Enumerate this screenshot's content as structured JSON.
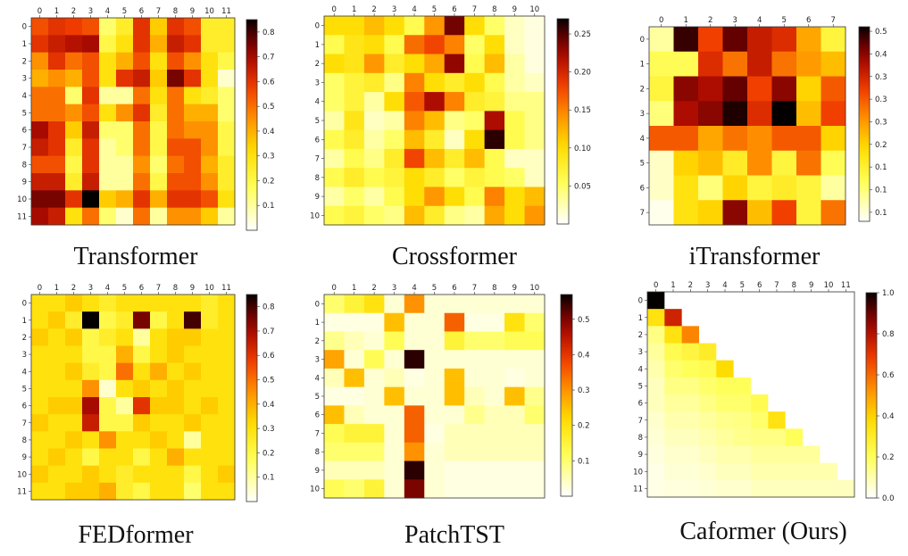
{
  "colormap": "hot_r",
  "chart_data": [
    {
      "type": "heatmap",
      "title": "Transformer",
      "x_ticks": [
        "0",
        "1",
        "2",
        "3",
        "4",
        "5",
        "6",
        "7",
        "8",
        "9",
        "10",
        "11"
      ],
      "y_ticks": [
        "0",
        "1",
        "2",
        "3",
        "4",
        "5",
        "6",
        "7",
        "8",
        "9",
        "10",
        "11"
      ],
      "vmin": 0.0,
      "vmax": 0.85,
      "colorbar_ticks": [
        0.1,
        0.2,
        0.3,
        0.4,
        0.5,
        0.6,
        0.7,
        0.8
      ],
      "values": [
        [
          0.55,
          0.6,
          0.58,
          0.55,
          0.15,
          0.25,
          0.6,
          0.35,
          0.6,
          0.55,
          0.25,
          0.25
        ],
        [
          0.6,
          0.65,
          0.68,
          0.7,
          0.2,
          0.3,
          0.6,
          0.4,
          0.65,
          0.6,
          0.25,
          0.25
        ],
        [
          0.45,
          0.6,
          0.5,
          0.55,
          0.3,
          0.4,
          0.55,
          0.3,
          0.55,
          0.45,
          0.3,
          0.2
        ],
        [
          0.4,
          0.45,
          0.4,
          0.55,
          0.3,
          0.6,
          0.65,
          0.35,
          0.75,
          0.6,
          0.3,
          0.05
        ],
        [
          0.5,
          0.5,
          0.15,
          0.6,
          0.1,
          0.1,
          0.5,
          0.3,
          0.5,
          0.3,
          0.25,
          0.15
        ],
        [
          0.5,
          0.5,
          0.45,
          0.55,
          0.3,
          0.45,
          0.6,
          0.25,
          0.5,
          0.4,
          0.4,
          0.15
        ],
        [
          0.7,
          0.6,
          0.35,
          0.65,
          0.15,
          0.15,
          0.5,
          0.2,
          0.5,
          0.45,
          0.45,
          0.2
        ],
        [
          0.65,
          0.6,
          0.25,
          0.6,
          0.1,
          0.15,
          0.5,
          0.2,
          0.55,
          0.55,
          0.45,
          0.2
        ],
        [
          0.55,
          0.55,
          0.2,
          0.6,
          0.1,
          0.1,
          0.45,
          0.15,
          0.5,
          0.55,
          0.4,
          0.25
        ],
        [
          0.65,
          0.65,
          0.25,
          0.65,
          0.1,
          0.1,
          0.5,
          0.2,
          0.55,
          0.55,
          0.45,
          0.25
        ],
        [
          0.75,
          0.75,
          0.6,
          0.85,
          0.35,
          0.4,
          0.6,
          0.4,
          0.6,
          0.6,
          0.55,
          0.3
        ],
        [
          0.7,
          0.65,
          0.3,
          0.5,
          0.15,
          0.05,
          0.5,
          0.1,
          0.45,
          0.45,
          0.35,
          0.1
        ]
      ]
    },
    {
      "type": "heatmap",
      "title": "Crossformer",
      "x_ticks": [
        "0",
        "1",
        "2",
        "3",
        "4",
        "5",
        "6",
        "7",
        "8",
        "9",
        "10"
      ],
      "y_ticks": [
        "0",
        "1",
        "2",
        "3",
        "4",
        "5",
        "6",
        "7",
        "8",
        "9",
        "10"
      ],
      "vmin": 0.0,
      "vmax": 0.27,
      "colorbar_ticks": [
        0.05,
        0.1,
        0.15,
        0.2,
        0.25
      ],
      "values": [
        [
          0.1,
          0.1,
          0.12,
          0.1,
          0.06,
          0.14,
          0.24,
          0.1,
          0.05,
          0.02,
          0.01
        ],
        [
          0.06,
          0.09,
          0.1,
          0.06,
          0.16,
          0.18,
          0.15,
          0.05,
          0.1,
          0.02,
          0.01
        ],
        [
          0.1,
          0.09,
          0.14,
          0.08,
          0.1,
          0.13,
          0.23,
          0.06,
          0.12,
          0.03,
          0.01
        ],
        [
          0.05,
          0.07,
          0.08,
          0.04,
          0.15,
          0.1,
          0.08,
          0.1,
          0.06,
          0.03,
          0.02
        ],
        [
          0.05,
          0.07,
          0.03,
          0.1,
          0.17,
          0.22,
          0.15,
          0.08,
          0.07,
          0.04,
          0.04
        ],
        [
          0.03,
          0.09,
          0.02,
          0.03,
          0.15,
          0.12,
          0.04,
          0.05,
          0.22,
          0.06,
          0.04
        ],
        [
          0.06,
          0.08,
          0.03,
          0.05,
          0.12,
          0.08,
          0.02,
          0.1,
          0.26,
          0.06,
          0.04
        ],
        [
          0.03,
          0.06,
          0.04,
          0.08,
          0.18,
          0.12,
          0.08,
          0.12,
          0.06,
          0.02,
          0.02
        ],
        [
          0.06,
          0.08,
          0.06,
          0.07,
          0.1,
          0.08,
          0.05,
          0.07,
          0.06,
          0.05,
          0.02
        ],
        [
          0.03,
          0.05,
          0.03,
          0.06,
          0.1,
          0.14,
          0.1,
          0.06,
          0.15,
          0.1,
          0.12
        ],
        [
          0.06,
          0.07,
          0.05,
          0.04,
          0.12,
          0.08,
          0.04,
          0.03,
          0.13,
          0.1,
          0.14
        ]
      ]
    },
    {
      "type": "heatmap",
      "title": "iTransformer",
      "x_ticks": [
        "0",
        "1",
        "2",
        "3",
        "4",
        "5",
        "6",
        "7"
      ],
      "y_ticks": [
        "0",
        "1",
        "2",
        "3",
        "4",
        "5",
        "6",
        "7"
      ],
      "vmin": 0.03,
      "vmax": 0.46,
      "colorbar_ticks": [
        0.05,
        0.1,
        0.15,
        0.2,
        0.25,
        0.3,
        0.35,
        0.4,
        0.45
      ],
      "values": [
        [
          0.08,
          0.44,
          0.32,
          0.42,
          0.36,
          0.34,
          0.24,
          0.14
        ],
        [
          0.12,
          0.12,
          0.34,
          0.28,
          0.36,
          0.28,
          0.25,
          0.22
        ],
        [
          0.14,
          0.4,
          0.38,
          0.42,
          0.32,
          0.4,
          0.2,
          0.3
        ],
        [
          0.1,
          0.38,
          0.4,
          0.45,
          0.34,
          0.46,
          0.22,
          0.32
        ],
        [
          0.3,
          0.3,
          0.24,
          0.28,
          0.26,
          0.3,
          0.3,
          0.2
        ],
        [
          0.06,
          0.2,
          0.22,
          0.16,
          0.26,
          0.14,
          0.28,
          0.12
        ],
        [
          0.06,
          0.18,
          0.1,
          0.2,
          0.14,
          0.16,
          0.14,
          0.08
        ],
        [
          0.04,
          0.18,
          0.2,
          0.4,
          0.22,
          0.32,
          0.14,
          0.28
        ]
      ]
    },
    {
      "type": "heatmap",
      "title": "FEDformer",
      "x_ticks": [
        "0",
        "1",
        "2",
        "3",
        "4",
        "5",
        "6",
        "7",
        "8",
        "9",
        "10",
        "11"
      ],
      "y_ticks": [
        "0",
        "1",
        "2",
        "3",
        "4",
        "5",
        "6",
        "7",
        "8",
        "9",
        "10",
        "11"
      ],
      "vmin": 0.0,
      "vmax": 0.85,
      "colorbar_ticks": [
        0.1,
        0.2,
        0.3,
        0.4,
        0.5,
        0.6,
        0.7,
        0.8
      ],
      "values": [
        [
          0.3,
          0.3,
          0.35,
          0.3,
          0.25,
          0.3,
          0.3,
          0.3,
          0.3,
          0.3,
          0.25,
          0.3
        ],
        [
          0.3,
          0.35,
          0.25,
          0.85,
          0.2,
          0.25,
          0.75,
          0.2,
          0.3,
          0.8,
          0.25,
          0.3
        ],
        [
          0.35,
          0.3,
          0.35,
          0.2,
          0.25,
          0.3,
          0.1,
          0.3,
          0.35,
          0.35,
          0.3,
          0.3
        ],
        [
          0.3,
          0.3,
          0.3,
          0.2,
          0.2,
          0.4,
          0.2,
          0.3,
          0.35,
          0.3,
          0.3,
          0.3
        ],
        [
          0.3,
          0.3,
          0.35,
          0.25,
          0.2,
          0.5,
          0.3,
          0.4,
          0.3,
          0.35,
          0.3,
          0.3
        ],
        [
          0.3,
          0.3,
          0.3,
          0.45,
          0.05,
          0.3,
          0.35,
          0.3,
          0.35,
          0.3,
          0.3,
          0.3
        ],
        [
          0.3,
          0.35,
          0.35,
          0.7,
          0.2,
          0.1,
          0.6,
          0.35,
          0.35,
          0.3,
          0.35,
          0.3
        ],
        [
          0.35,
          0.3,
          0.3,
          0.65,
          0.2,
          0.2,
          0.35,
          0.3,
          0.3,
          0.35,
          0.3,
          0.3
        ],
        [
          0.3,
          0.3,
          0.35,
          0.3,
          0.45,
          0.3,
          0.3,
          0.35,
          0.3,
          0.1,
          0.3,
          0.3
        ],
        [
          0.3,
          0.35,
          0.3,
          0.2,
          0.3,
          0.3,
          0.2,
          0.3,
          0.4,
          0.3,
          0.3,
          0.3
        ],
        [
          0.35,
          0.3,
          0.3,
          0.35,
          0.3,
          0.25,
          0.3,
          0.3,
          0.3,
          0.2,
          0.3,
          0.35
        ],
        [
          0.3,
          0.3,
          0.35,
          0.35,
          0.4,
          0.25,
          0.2,
          0.3,
          0.3,
          0.15,
          0.3,
          0.3
        ]
      ]
    },
    {
      "type": "heatmap",
      "title": "PatchTST",
      "x_ticks": [
        "0",
        "1",
        "2",
        "3",
        "4",
        "5",
        "6",
        "7",
        "8",
        "9",
        "10"
      ],
      "y_ticks": [
        "0",
        "1",
        "2",
        "3",
        "4",
        "5",
        "6",
        "7",
        "8",
        "9",
        "10"
      ],
      "vmin": 0.0,
      "vmax": 0.57,
      "colorbar_ticks": [
        0.1,
        0.2,
        0.3,
        0.4,
        0.5
      ],
      "values": [
        [
          0.1,
          0.15,
          0.2,
          0.03,
          0.3,
          0.03,
          0.03,
          0.03,
          0.03,
          0.03,
          0.03
        ],
        [
          0.02,
          0.02,
          0.02,
          0.25,
          0.03,
          0.03,
          0.35,
          0.02,
          0.02,
          0.2,
          0.1
        ],
        [
          0.08,
          0.05,
          0.03,
          0.12,
          0.03,
          0.03,
          0.15,
          0.1,
          0.1,
          0.12,
          0.12
        ],
        [
          0.28,
          0.03,
          0.12,
          0.03,
          0.55,
          0.03,
          0.03,
          0.03,
          0.03,
          0.03,
          0.03
        ],
        [
          0.05,
          0.25,
          0.03,
          0.05,
          0.02,
          0.03,
          0.25,
          0.03,
          0.03,
          0.02,
          0.03
        ],
        [
          0.02,
          0.02,
          0.03,
          0.25,
          0.03,
          0.03,
          0.25,
          0.05,
          0.03,
          0.25,
          0.08
        ],
        [
          0.25,
          0.05,
          0.03,
          0.03,
          0.35,
          0.03,
          0.03,
          0.08,
          0.05,
          0.05,
          0.1
        ],
        [
          0.12,
          0.15,
          0.15,
          0.03,
          0.35,
          0.02,
          0.05,
          0.05,
          0.05,
          0.05,
          0.05
        ],
        [
          0.1,
          0.1,
          0.1,
          0.03,
          0.3,
          0.03,
          0.05,
          0.05,
          0.05,
          0.05,
          0.05
        ],
        [
          0.05,
          0.05,
          0.05,
          0.03,
          0.55,
          0.03,
          0.02,
          0.02,
          0.02,
          0.02,
          0.02
        ],
        [
          0.12,
          0.1,
          0.15,
          0.03,
          0.5,
          0.03,
          0.02,
          0.02,
          0.02,
          0.02,
          0.02
        ]
      ]
    },
    {
      "type": "heatmap",
      "title": "Caformer (Ours)",
      "x_ticks": [
        "0",
        "1",
        "2",
        "3",
        "4",
        "5",
        "6",
        "7",
        "8",
        "9",
        "10",
        "11"
      ],
      "y_ticks": [
        "0",
        "1",
        "2",
        "3",
        "4",
        "5",
        "6",
        "7",
        "8",
        "9",
        "10",
        "11"
      ],
      "vmin": 0.0,
      "vmax": 1.0,
      "colorbar_ticks": [
        0.0,
        0.2,
        0.4,
        0.6,
        0.8,
        1.0
      ],
      "values": [
        [
          1.0,
          0.0,
          0.0,
          0.0,
          0.0,
          0.0,
          0.0,
          0.0,
          0.0,
          0.0,
          0.0,
          0.0
        ],
        [
          0.35,
          0.75,
          0.0,
          0.0,
          0.0,
          0.0,
          0.0,
          0.0,
          0.0,
          0.0,
          0.0,
          0.0
        ],
        [
          0.15,
          0.35,
          0.55,
          0.0,
          0.0,
          0.0,
          0.0,
          0.0,
          0.0,
          0.0,
          0.0,
          0.0
        ],
        [
          0.12,
          0.22,
          0.25,
          0.3,
          0.0,
          0.0,
          0.0,
          0.0,
          0.0,
          0.0,
          0.0,
          0.0
        ],
        [
          0.1,
          0.18,
          0.2,
          0.22,
          0.38,
          0.0,
          0.0,
          0.0,
          0.0,
          0.0,
          0.0,
          0.0
        ],
        [
          0.08,
          0.15,
          0.15,
          0.18,
          0.2,
          0.2,
          0.0,
          0.0,
          0.0,
          0.0,
          0.0,
          0.0
        ],
        [
          0.08,
          0.12,
          0.12,
          0.15,
          0.18,
          0.18,
          0.22,
          0.0,
          0.0,
          0.0,
          0.0,
          0.0
        ],
        [
          0.06,
          0.1,
          0.1,
          0.12,
          0.14,
          0.15,
          0.18,
          0.35,
          0.0,
          0.0,
          0.0,
          0.0
        ],
        [
          0.05,
          0.08,
          0.08,
          0.1,
          0.12,
          0.14,
          0.15,
          0.15,
          0.2,
          0.0,
          0.0,
          0.0
        ],
        [
          0.04,
          0.06,
          0.06,
          0.08,
          0.1,
          0.1,
          0.12,
          0.12,
          0.12,
          0.12,
          0.0,
          0.0
        ],
        [
          0.03,
          0.05,
          0.05,
          0.06,
          0.08,
          0.08,
          0.1,
          0.1,
          0.1,
          0.1,
          0.1,
          0.0
        ],
        [
          0.03,
          0.04,
          0.04,
          0.05,
          0.06,
          0.06,
          0.08,
          0.08,
          0.08,
          0.08,
          0.08,
          0.08
        ]
      ]
    }
  ]
}
